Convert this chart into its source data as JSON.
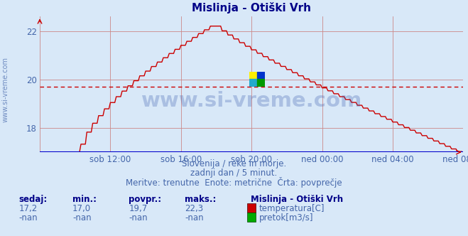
{
  "title": "Mislinja - Otiški Vrh",
  "bg_color": "#d8e8f8",
  "line_color": "#cc0000",
  "avg_value": 19.7,
  "yticks": [
    18,
    20,
    22
  ],
  "y_axis_min": 17.0,
  "y_axis_max": 22.6,
  "x_labels": [
    "sob 12:00",
    "sob 16:00",
    "sob 20:00",
    "ned 00:00",
    "ned 04:00",
    "ned 08:00"
  ],
  "watermark": "www.si-vreme.com",
  "subtitle1": "Slovenija / reke in morje.",
  "subtitle2": "zadnji dan / 5 minut.",
  "subtitle3": "Meritve: trenutne  Enote: metrične  Črta: povprečje",
  "label_sedaj": "sedaj:",
  "label_min": "min.:",
  "label_povpr": "povpr.:",
  "label_maks": "maks.:",
  "val_sedaj": "17,2",
  "val_min": "17,0",
  "val_povpr": "19,7",
  "val_maks": "22,3",
  "val_sedaj2": "-nan",
  "val_min2": "-nan",
  "val_povpr2": "-nan",
  "val_maks2": "-nan",
  "legend_title": "Mislinja - Otiški Vrh",
  "legend_temp": "temperatura[C]",
  "legend_pretok": "pretok[m3/s]",
  "temp_color": "#cc0000",
  "pretok_color": "#00aa00",
  "left_label": "www.si-vreme.com",
  "n_points": 288,
  "grid_color": "#cc8888",
  "avg_line_color": "#cc0000",
  "blue_base_color": "#0000cc",
  "text_color": "#4466aa",
  "title_color": "#000088",
  "label_color": "#000088"
}
